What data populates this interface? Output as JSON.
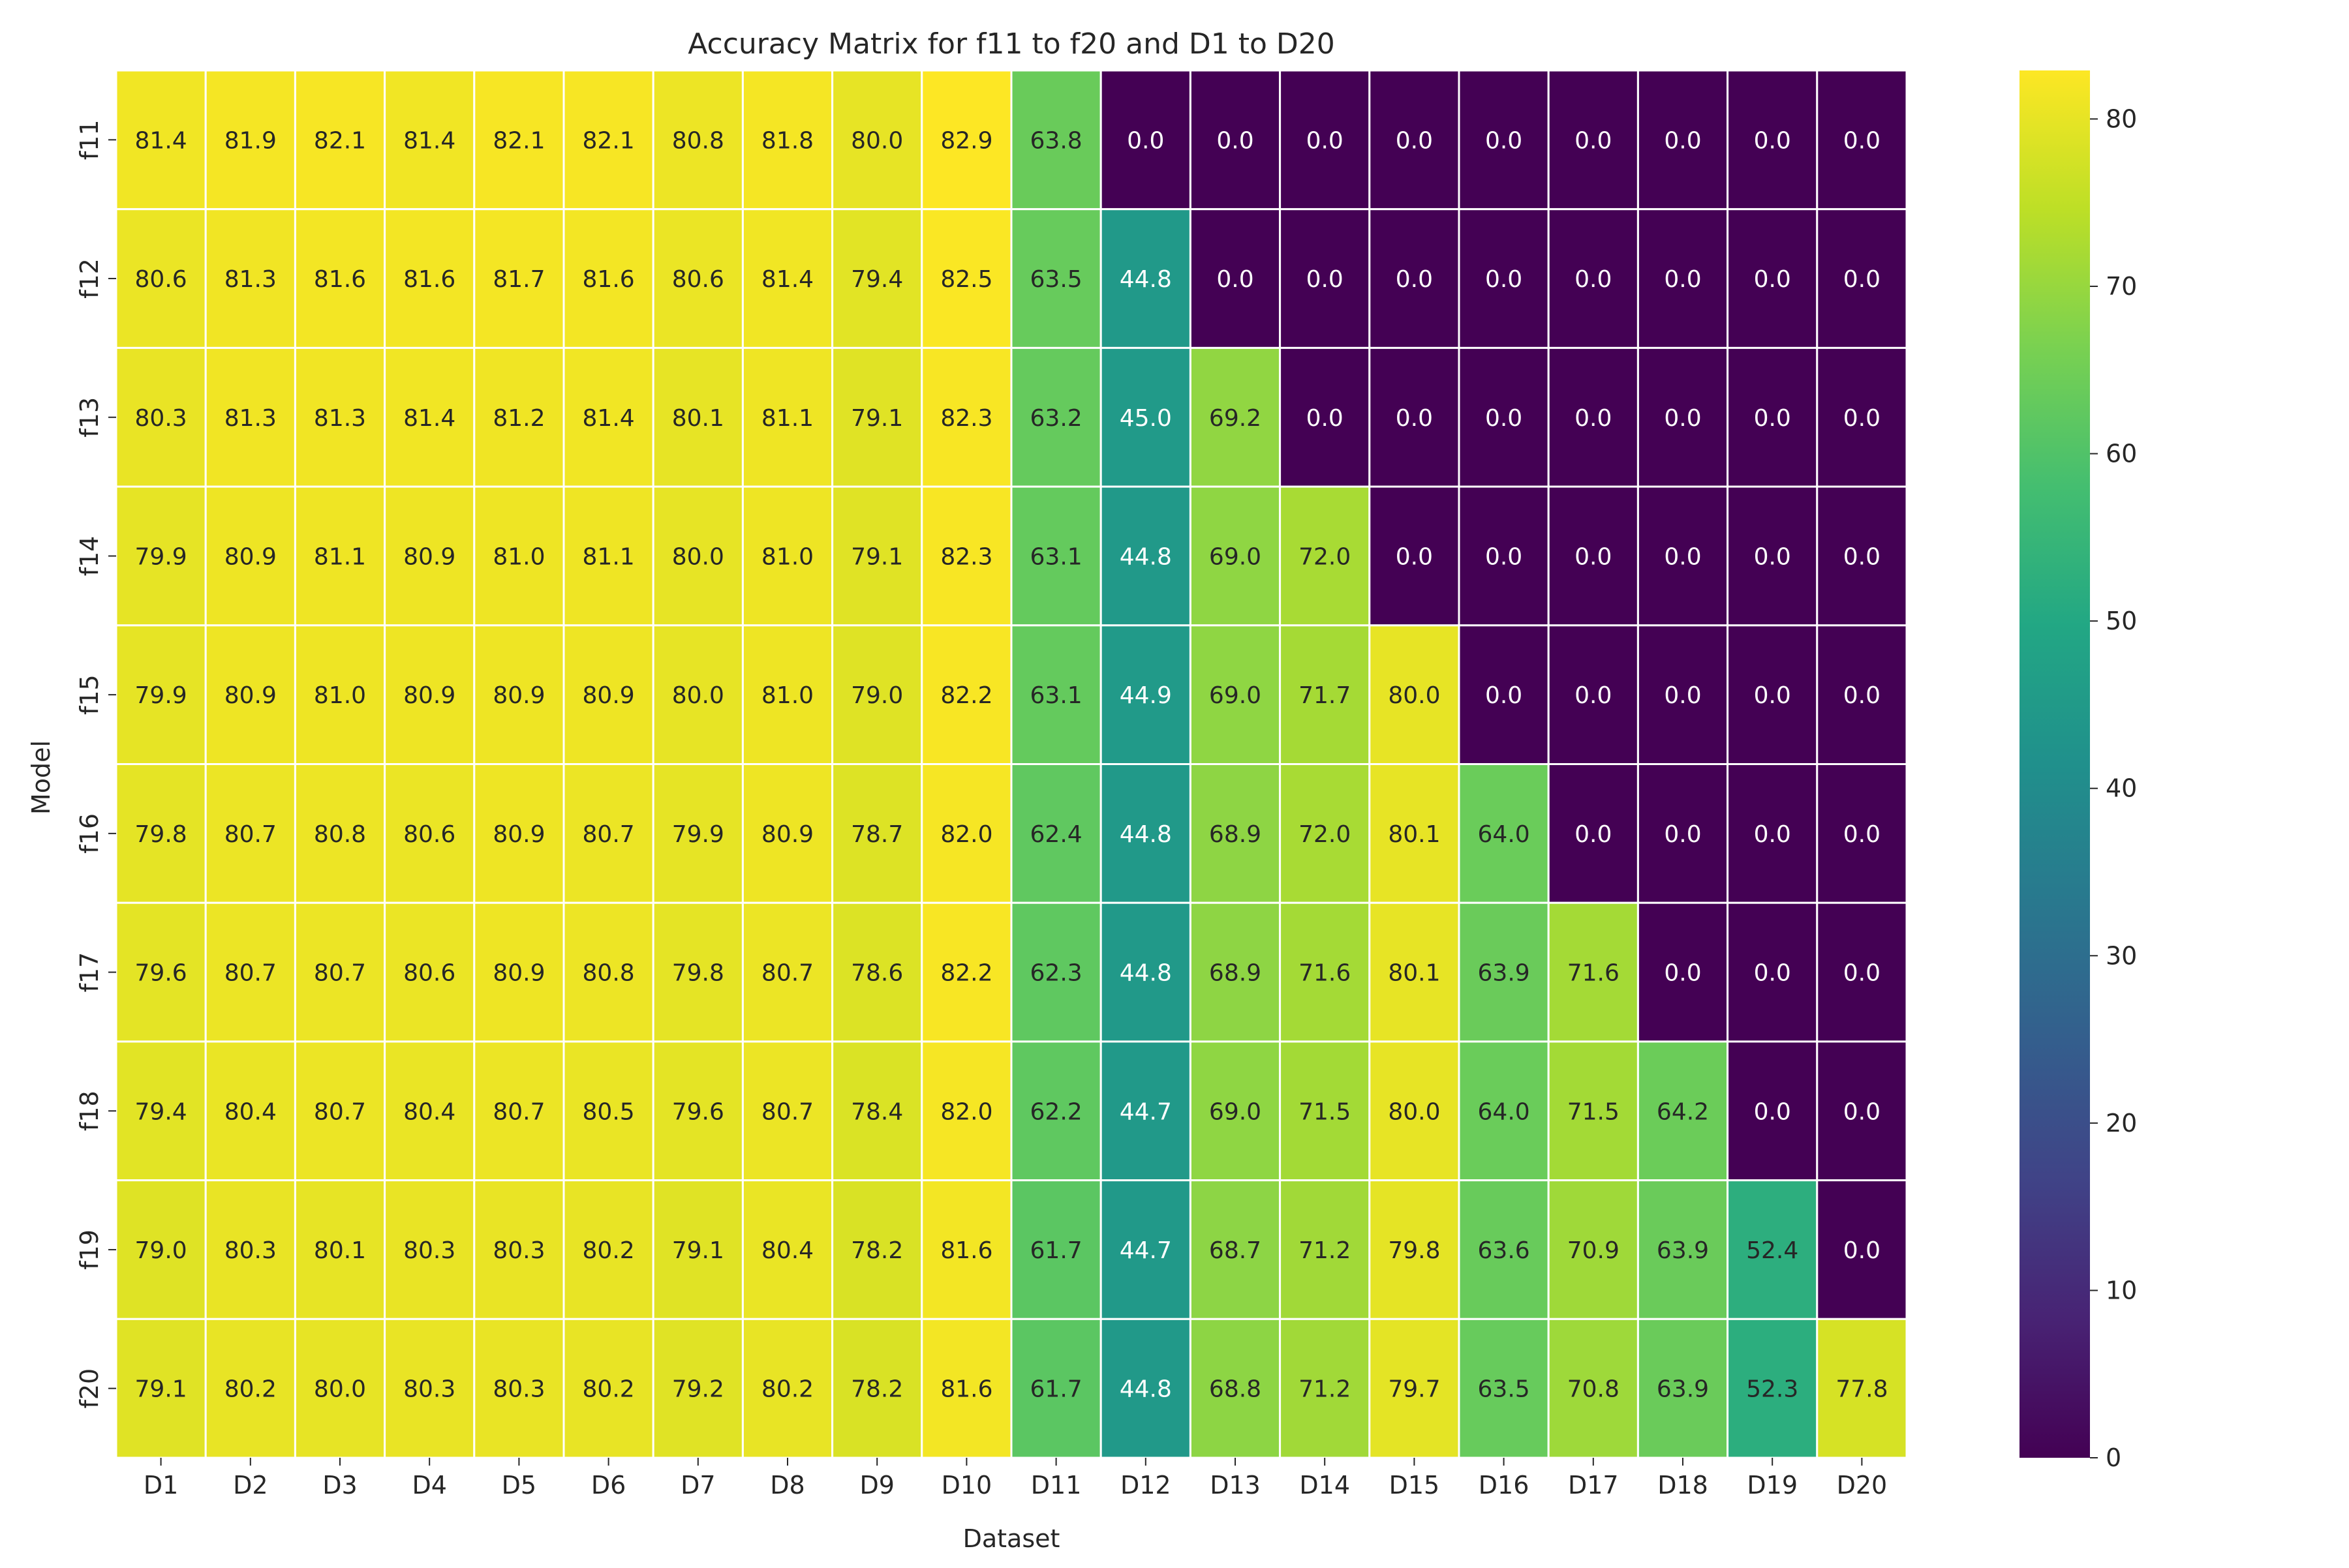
{
  "chart_data": {
    "type": "heatmap",
    "title": "Accuracy Matrix for f11 to f20 and D1 to D20",
    "xlabel": "Dataset",
    "ylabel": "Model",
    "x_categories": [
      "D1",
      "D2",
      "D3",
      "D4",
      "D5",
      "D6",
      "D7",
      "D8",
      "D9",
      "D10",
      "D11",
      "D12",
      "D13",
      "D14",
      "D15",
      "D16",
      "D17",
      "D18",
      "D19",
      "D20"
    ],
    "y_categories": [
      "f11",
      "f12",
      "f13",
      "f14",
      "f15",
      "f16",
      "f17",
      "f18",
      "f19",
      "f20"
    ],
    "values": [
      [
        81.4,
        81.9,
        82.1,
        81.4,
        82.1,
        82.1,
        80.8,
        81.8,
        80.0,
        82.9,
        63.8,
        0.0,
        0.0,
        0.0,
        0.0,
        0.0,
        0.0,
        0.0,
        0.0,
        0.0
      ],
      [
        80.6,
        81.3,
        81.6,
        81.6,
        81.7,
        81.6,
        80.6,
        81.4,
        79.4,
        82.5,
        63.5,
        44.8,
        0.0,
        0.0,
        0.0,
        0.0,
        0.0,
        0.0,
        0.0,
        0.0
      ],
      [
        80.3,
        81.3,
        81.3,
        81.4,
        81.2,
        81.4,
        80.1,
        81.1,
        79.1,
        82.3,
        63.2,
        45.0,
        69.2,
        0.0,
        0.0,
        0.0,
        0.0,
        0.0,
        0.0,
        0.0
      ],
      [
        79.9,
        80.9,
        81.1,
        80.9,
        81.0,
        81.1,
        80.0,
        81.0,
        79.1,
        82.3,
        63.1,
        44.8,
        69.0,
        72.0,
        0.0,
        0.0,
        0.0,
        0.0,
        0.0,
        0.0
      ],
      [
        79.9,
        80.9,
        81.0,
        80.9,
        80.9,
        80.9,
        80.0,
        81.0,
        79.0,
        82.2,
        63.1,
        44.9,
        69.0,
        71.7,
        80.0,
        0.0,
        0.0,
        0.0,
        0.0,
        0.0
      ],
      [
        79.8,
        80.7,
        80.8,
        80.6,
        80.9,
        80.7,
        79.9,
        80.9,
        78.7,
        82.0,
        62.4,
        44.8,
        68.9,
        72.0,
        80.1,
        64.0,
        0.0,
        0.0,
        0.0,
        0.0
      ],
      [
        79.6,
        80.7,
        80.7,
        80.6,
        80.9,
        80.8,
        79.8,
        80.7,
        78.6,
        82.2,
        62.3,
        44.8,
        68.9,
        71.6,
        80.1,
        63.9,
        71.6,
        0.0,
        0.0,
        0.0
      ],
      [
        79.4,
        80.4,
        80.7,
        80.4,
        80.7,
        80.5,
        79.6,
        80.7,
        78.4,
        82.0,
        62.2,
        44.7,
        69.0,
        71.5,
        80.0,
        64.0,
        71.5,
        64.2,
        0.0,
        0.0
      ],
      [
        79.0,
        80.3,
        80.1,
        80.3,
        80.3,
        80.2,
        79.1,
        80.4,
        78.2,
        81.6,
        61.7,
        44.7,
        68.7,
        71.2,
        79.8,
        63.6,
        70.9,
        63.9,
        52.4,
        0.0
      ],
      [
        79.1,
        80.2,
        80.0,
        80.3,
        80.3,
        80.2,
        79.2,
        80.2,
        78.2,
        81.6,
        61.7,
        44.8,
        68.8,
        71.2,
        79.7,
        63.5,
        70.8,
        63.9,
        52.3,
        77.8
      ]
    ],
    "colormap": "viridis",
    "vmin": 0,
    "vmax": 82.9,
    "colorbar_ticks": [
      0,
      10,
      20,
      30,
      40,
      50,
      60,
      70,
      80
    ],
    "annotation_format": "0.0",
    "grid": false
  }
}
